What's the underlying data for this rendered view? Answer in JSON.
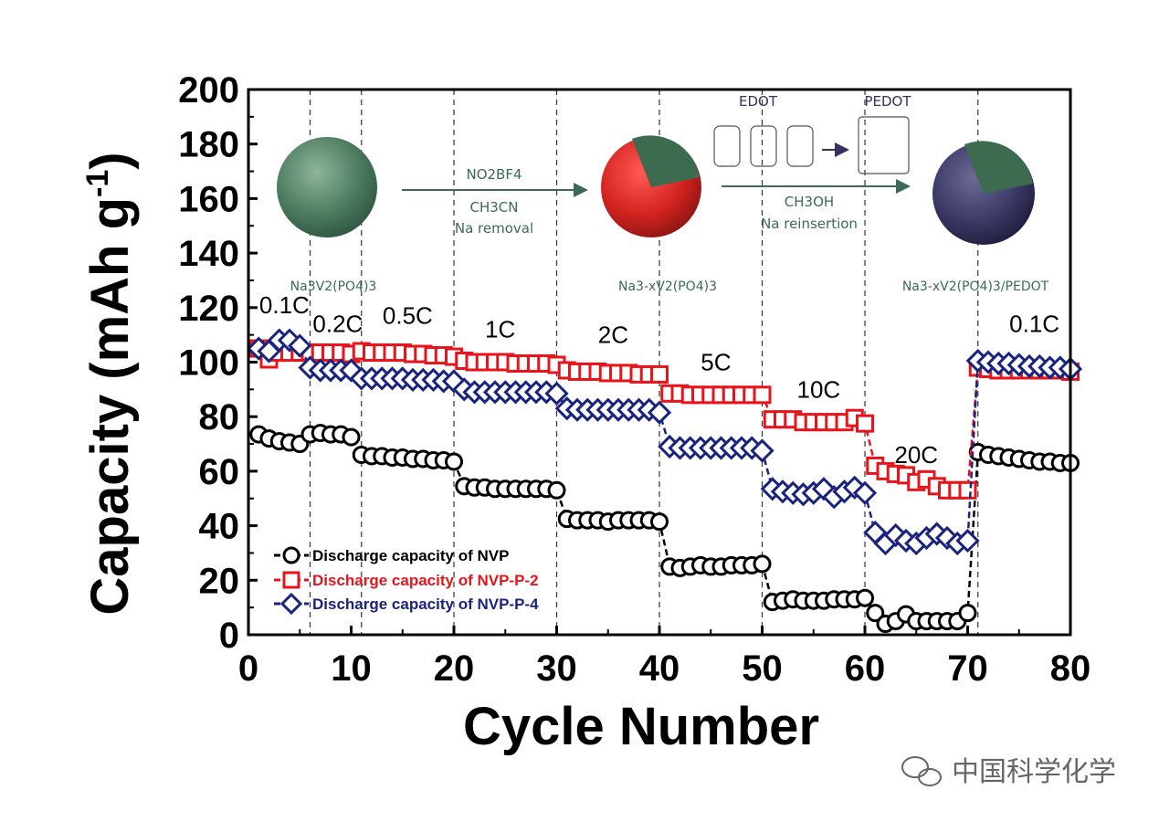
{
  "chart_data": {
    "type": "scatter",
    "xlabel": "Cycle Number",
    "ylabel": "Capacity (mAh g",
    "ylabel_sup": "-1",
    "ylabel_close": ")",
    "xlim": [
      0,
      80
    ],
    "ylim": [
      0,
      200
    ],
    "xticks": [
      0,
      10,
      20,
      30,
      40,
      50,
      60,
      70,
      80
    ],
    "yticks": [
      0,
      20,
      40,
      60,
      80,
      100,
      120,
      140,
      160,
      180,
      200
    ],
    "rate_boundaries": [
      6,
      11,
      20,
      30,
      40,
      50,
      60,
      71
    ],
    "rate_labels": [
      {
        "text": "0.1C",
        "x": 3.5,
        "y": 118
      },
      {
        "text": "0.2C",
        "x": 8.7,
        "y": 111
      },
      {
        "text": "0.5C",
        "x": 15.5,
        "y": 114
      },
      {
        "text": "1C",
        "x": 24.5,
        "y": 109
      },
      {
        "text": "2C",
        "x": 35.5,
        "y": 107
      },
      {
        "text": "5C",
        "x": 45.5,
        "y": 97
      },
      {
        "text": "10C",
        "x": 55.5,
        "y": 87
      },
      {
        "text": "20C",
        "x": 65,
        "y": 63
      },
      {
        "text": "0.1C",
        "x": 76.5,
        "y": 111
      }
    ],
    "series": [
      {
        "name": "Discharge capacity of NVP",
        "marker": "circle",
        "color": "#000000",
        "x": [
          1,
          2,
          3,
          4,
          5,
          6,
          7,
          8,
          9,
          10,
          11,
          12,
          13,
          14,
          15,
          16,
          17,
          18,
          19,
          20,
          21,
          22,
          23,
          24,
          25,
          26,
          27,
          28,
          29,
          30,
          31,
          32,
          33,
          34,
          35,
          36,
          37,
          38,
          39,
          40,
          41,
          42,
          43,
          44,
          45,
          46,
          47,
          48,
          49,
          50,
          51,
          52,
          53,
          54,
          55,
          56,
          57,
          58,
          59,
          60,
          61,
          62,
          63,
          64,
          65,
          66,
          67,
          68,
          69,
          70,
          71,
          72,
          73,
          74,
          75,
          76,
          77,
          78,
          79,
          80
        ],
        "y": [
          73.5,
          72,
          71,
          70.5,
          70,
          73.5,
          74,
          73.5,
          73.5,
          72.5,
          66,
          65.5,
          65.5,
          65,
          65,
          64.5,
          64.5,
          64,
          64,
          63.5,
          54.5,
          54,
          54,
          53.5,
          53.5,
          53.5,
          53.5,
          53.5,
          53.5,
          53,
          42.5,
          42,
          42,
          42,
          41.5,
          42,
          42,
          42,
          42,
          41.5,
          25,
          24.5,
          25,
          25.5,
          25,
          25,
          25.5,
          25.5,
          25.5,
          26,
          12,
          12.5,
          13,
          12.5,
          12.5,
          12.5,
          13,
          13,
          13,
          13.5,
          8,
          4,
          5,
          7.5,
          5,
          5,
          5,
          5,
          5,
          8,
          67,
          66,
          65.5,
          65,
          64.5,
          64,
          63.5,
          63.5,
          63,
          63
        ]
      },
      {
        "name": "Discharge capacity of NVP-P-2",
        "marker": "square",
        "color": "#e8141b",
        "x": [
          1,
          2,
          3,
          4,
          5,
          6,
          7,
          8,
          9,
          10,
          11,
          12,
          13,
          14,
          15,
          16,
          17,
          18,
          19,
          20,
          21,
          22,
          23,
          24,
          25,
          26,
          27,
          28,
          29,
          30,
          31,
          32,
          33,
          34,
          35,
          36,
          37,
          38,
          39,
          40,
          41,
          42,
          43,
          44,
          45,
          46,
          47,
          48,
          49,
          50,
          51,
          52,
          53,
          54,
          55,
          56,
          57,
          58,
          59,
          60,
          61,
          62,
          63,
          64,
          65,
          66,
          67,
          68,
          69,
          70,
          71,
          72,
          73,
          74,
          75,
          76,
          77,
          78,
          79,
          80
        ],
        "y": [
          105,
          101,
          103.5,
          103.5,
          103.5,
          103.5,
          103.5,
          103.5,
          103.5,
          103,
          104,
          103.5,
          103.5,
          103.5,
          103.5,
          103,
          103,
          102.5,
          102.5,
          102,
          100.5,
          100,
          100,
          100,
          100,
          99.5,
          99.5,
          99.5,
          99.5,
          99,
          97,
          96.5,
          96.5,
          96.5,
          96,
          96,
          96,
          95.5,
          95.5,
          95.5,
          88.5,
          88.5,
          88,
          88,
          88,
          88,
          88,
          88,
          88,
          88,
          79,
          79,
          79,
          78,
          78,
          78,
          78,
          78,
          79.5,
          77.5,
          62,
          60,
          59,
          58.5,
          56,
          57,
          54.5,
          53,
          53,
          53,
          98,
          97.5,
          97,
          97,
          97,
          97,
          97,
          97,
          97,
          96.5
        ]
      },
      {
        "name": "Discharge capacity of NVP-P-4",
        "marker": "diamond",
        "color": "#1a237e",
        "x": [
          1,
          2,
          3,
          4,
          5,
          6,
          7,
          8,
          9,
          10,
          11,
          12,
          13,
          14,
          15,
          16,
          17,
          18,
          19,
          20,
          21,
          22,
          23,
          24,
          25,
          26,
          27,
          28,
          29,
          30,
          31,
          32,
          33,
          34,
          35,
          36,
          37,
          38,
          39,
          40,
          41,
          42,
          43,
          44,
          45,
          46,
          47,
          48,
          49,
          50,
          51,
          52,
          53,
          54,
          55,
          56,
          57,
          58,
          59,
          60,
          61,
          62,
          63,
          64,
          65,
          66,
          67,
          68,
          69,
          70,
          71,
          72,
          73,
          74,
          75,
          76,
          77,
          78,
          79,
          80
        ],
        "y": [
          105,
          104,
          108,
          108,
          106,
          98,
          97,
          97,
          97,
          97,
          94,
          94,
          94,
          94,
          94,
          93.5,
          93.5,
          93.5,
          93,
          93,
          90,
          89,
          89,
          89,
          89,
          89,
          89,
          89,
          89,
          88.5,
          83,
          82.5,
          82.5,
          82.5,
          82.5,
          82.5,
          82.5,
          82.5,
          82.5,
          81.5,
          69,
          68.5,
          68.5,
          68.5,
          68.5,
          68.5,
          68.5,
          68.5,
          68.5,
          67.5,
          53.5,
          52.5,
          52,
          51.5,
          52,
          53.5,
          50.5,
          52.5,
          54,
          52,
          37.5,
          33.5,
          36.5,
          34.5,
          33.5,
          35.5,
          37,
          35.5,
          33.5,
          34.5,
          100.5,
          100,
          99.5,
          99.5,
          99,
          98.5,
          98.5,
          98,
          98,
          97.5
        ]
      }
    ]
  },
  "schematic": {
    "particle1_label": "Na3V2(PO4)3",
    "particle2_label": "Na3-xV2(PO4)3",
    "particle3_label": "Na3-xV2(PO4)3/PEDOT",
    "arrow1_line1": "NO2BF4",
    "arrow1_line2": "CH3CN",
    "arrow1_line3": "Na removal",
    "arrow2_line1": "CH3OH",
    "arrow2_line2": "Na reinsertion",
    "edot_label": "EDOT",
    "pedot_label": "PEDOT"
  },
  "watermark": "中国科学化学"
}
